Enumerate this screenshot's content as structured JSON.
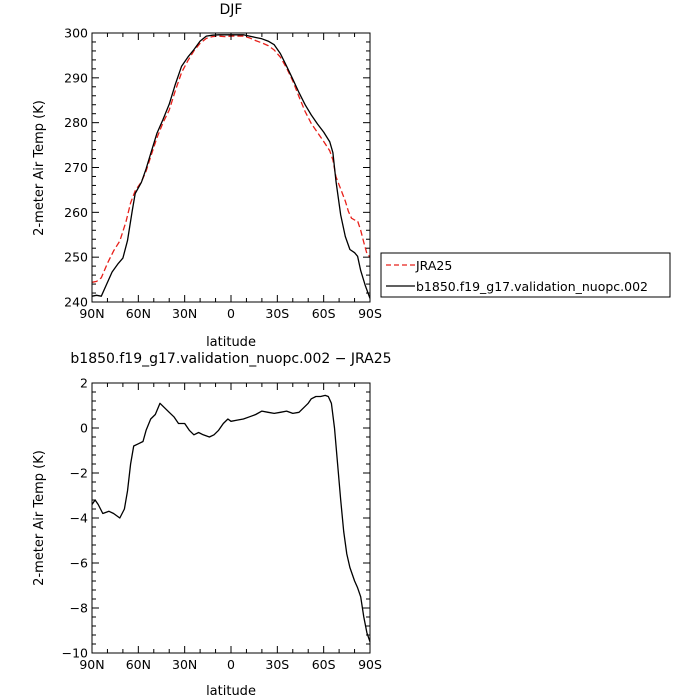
{
  "chart_data": [
    {
      "type": "line",
      "title": "DJF",
      "xlabel": "latitude",
      "ylabel": "2-meter Air Temp (K)",
      "xlim": [
        90,
        -90
      ],
      "ylim": [
        240,
        300
      ],
      "x_tick_values": [
        90,
        60,
        30,
        0,
        -30,
        -60,
        -90
      ],
      "x_tick_labels": [
        "90N",
        "60N",
        "30N",
        "0",
        "30S",
        "60S",
        "90S"
      ],
      "y_ticks": [
        240,
        250,
        260,
        270,
        280,
        290,
        300
      ],
      "legend": {
        "placement": "right-outside",
        "entries": [
          "JRA25",
          "b1850.f19_g17.validation_nuopc.002"
        ]
      },
      "series": [
        {
          "name": "JRA25",
          "color": "#e8201a",
          "dash": "dashed",
          "points": [
            [
              90,
              244.4
            ],
            [
              87,
              244.6
            ],
            [
              84,
              245.4
            ],
            [
              80,
              248.6
            ],
            [
              76,
              251.4
            ],
            [
              72,
              253.6
            ],
            [
              68,
              257.9
            ],
            [
              65,
              262.1
            ],
            [
              62,
              264.8
            ],
            [
              58,
              266.8
            ],
            [
              55,
              269.2
            ],
            [
              52,
              272.4
            ],
            [
              48,
              276.6
            ],
            [
              44,
              280.0
            ],
            [
              40,
              282.8
            ],
            [
              36,
              287.2
            ],
            [
              32,
              291.2
            ],
            [
              28,
              293.8
            ],
            [
              24,
              296.0
            ],
            [
              20,
              297.7
            ],
            [
              16,
              298.8
            ],
            [
              12,
              299.2
            ],
            [
              8,
              299.3
            ],
            [
              4,
              299.2
            ],
            [
              0,
              299.3
            ],
            [
              -4,
              299.3
            ],
            [
              -8,
              299.3
            ],
            [
              -12,
              298.9
            ],
            [
              -16,
              298.3
            ],
            [
              -20,
              297.8
            ],
            [
              -24,
              297.2
            ],
            [
              -28,
              296.2
            ],
            [
              -32,
              294.6
            ],
            [
              -36,
              292.2
            ],
            [
              -40,
              289.3
            ],
            [
              -44,
              285.8
            ],
            [
              -48,
              282.5
            ],
            [
              -52,
              279.8
            ],
            [
              -56,
              277.8
            ],
            [
              -60,
              275.8
            ],
            [
              -64,
              273.7
            ],
            [
              -66,
              271.7
            ],
            [
              -68,
              267.9
            ],
            [
              -71,
              265.2
            ],
            [
              -74,
              262.5
            ],
            [
              -76,
              260.2
            ],
            [
              -78,
              258.7
            ],
            [
              -80,
              258.3
            ],
            [
              -82,
              258.1
            ],
            [
              -84,
              256.0
            ],
            [
              -86,
              253.3
            ],
            [
              -88,
              250.8
            ],
            [
              -90,
              250.0
            ]
          ]
        },
        {
          "name": "b1850.f19_g17.validation_nuopc.002",
          "color": "#000000",
          "dash": "solid",
          "points": [
            [
              90,
              241.3
            ],
            [
              87,
              241.5
            ],
            [
              84,
              241.3
            ],
            [
              81,
              243.6
            ],
            [
              77,
              246.7
            ],
            [
              73,
              248.6
            ],
            [
              70,
              249.8
            ],
            [
              67,
              253.7
            ],
            [
              64,
              260.3
            ],
            [
              62,
              264.2
            ],
            [
              58,
              266.7
            ],
            [
              55,
              269.7
            ],
            [
              52,
              273.1
            ],
            [
              48,
              277.6
            ],
            [
              44,
              280.7
            ],
            [
              40,
              284.1
            ],
            [
              36,
              288.6
            ],
            [
              32,
              292.6
            ],
            [
              28,
              294.6
            ],
            [
              24,
              296.3
            ],
            [
              20,
              298.2
            ],
            [
              16,
              299.3
            ],
            [
              12,
              299.5
            ],
            [
              8,
              299.6
            ],
            [
              4,
              299.6
            ],
            [
              0,
              299.6
            ],
            [
              -4,
              299.6
            ],
            [
              -8,
              299.6
            ],
            [
              -12,
              299.3
            ],
            [
              -16,
              299.0
            ],
            [
              -20,
              298.7
            ],
            [
              -24,
              298.2
            ],
            [
              -28,
              297.4
            ],
            [
              -32,
              295.4
            ],
            [
              -36,
              292.6
            ],
            [
              -40,
              289.7
            ],
            [
              -44,
              286.7
            ],
            [
              -48,
              284.0
            ],
            [
              -52,
              281.7
            ],
            [
              -56,
              279.7
            ],
            [
              -60,
              277.9
            ],
            [
              -64,
              275.7
            ],
            [
              -66,
              273.3
            ],
            [
              -68,
              266.9
            ],
            [
              -71,
              259.4
            ],
            [
              -74,
              254.6
            ],
            [
              -77,
              251.7
            ],
            [
              -80,
              251.0
            ],
            [
              -82,
              250.2
            ],
            [
              -84,
              247.0
            ],
            [
              -87,
              243.6
            ],
            [
              -90,
              240.8
            ]
          ]
        }
      ]
    },
    {
      "type": "line",
      "title": "b1850.f19_g17.validation_nuopc.002 − JRA25",
      "xlabel": "latitude",
      "ylabel": "2-meter Air Temp (K)",
      "xlim": [
        90,
        -90
      ],
      "ylim": [
        -10,
        2
      ],
      "x_tick_values": [
        90,
        60,
        30,
        0,
        -30,
        -60,
        -90
      ],
      "x_tick_labels": [
        "90N",
        "60N",
        "30N",
        "0",
        "30S",
        "60S",
        "90S"
      ],
      "y_ticks": [
        -10,
        -8,
        -6,
        -4,
        -2,
        0,
        2
      ],
      "series": [
        {
          "color": "#000000",
          "dash": "solid",
          "points": [
            [
              90,
              -3.4
            ],
            [
              88,
              -3.2
            ],
            [
              86,
              -3.4
            ],
            [
              83,
              -3.8
            ],
            [
              79,
              -3.7
            ],
            [
              76,
              -3.8
            ],
            [
              72,
              -4.0
            ],
            [
              69,
              -3.6
            ],
            [
              67,
              -2.8
            ],
            [
              65,
              -1.6
            ],
            [
              63,
              -0.8
            ],
            [
              60,
              -0.7
            ],
            [
              57,
              -0.6
            ],
            [
              55,
              -0.1
            ],
            [
              52,
              0.4
            ],
            [
              49,
              0.6
            ],
            [
              46,
              1.1
            ],
            [
              43,
              0.9
            ],
            [
              40,
              0.7
            ],
            [
              37,
              0.5
            ],
            [
              34,
              0.2
            ],
            [
              30,
              0.2
            ],
            [
              27,
              -0.1
            ],
            [
              24,
              -0.3
            ],
            [
              21,
              -0.2
            ],
            [
              18,
              -0.3
            ],
            [
              14,
              -0.4
            ],
            [
              11,
              -0.3
            ],
            [
              8,
              -0.1
            ],
            [
              5,
              0.2
            ],
            [
              2,
              0.4
            ],
            [
              0,
              0.3
            ],
            [
              -4,
              0.35
            ],
            [
              -8,
              0.4
            ],
            [
              -12,
              0.5
            ],
            [
              -16,
              0.6
            ],
            [
              -20,
              0.75
            ],
            [
              -24,
              0.7
            ],
            [
              -28,
              0.65
            ],
            [
              -32,
              0.7
            ],
            [
              -36,
              0.75
            ],
            [
              -40,
              0.65
            ],
            [
              -44,
              0.7
            ],
            [
              -47,
              0.9
            ],
            [
              -50,
              1.1
            ],
            [
              -52,
              1.3
            ],
            [
              -55,
              1.4
            ],
            [
              -58,
              1.4
            ],
            [
              -61,
              1.45
            ],
            [
              -63,
              1.4
            ],
            [
              -65,
              1.1
            ],
            [
              -67,
              0.0
            ],
            [
              -69,
              -1.6
            ],
            [
              -71,
              -3.2
            ],
            [
              -73,
              -4.6
            ],
            [
              -75,
              -5.6
            ],
            [
              -77,
              -6.2
            ],
            [
              -80,
              -6.8
            ],
            [
              -82,
              -7.1
            ],
            [
              -84,
              -7.5
            ],
            [
              -86,
              -8.4
            ],
            [
              -88,
              -9.1
            ],
            [
              -90,
              -9.5
            ]
          ]
        }
      ]
    }
  ]
}
